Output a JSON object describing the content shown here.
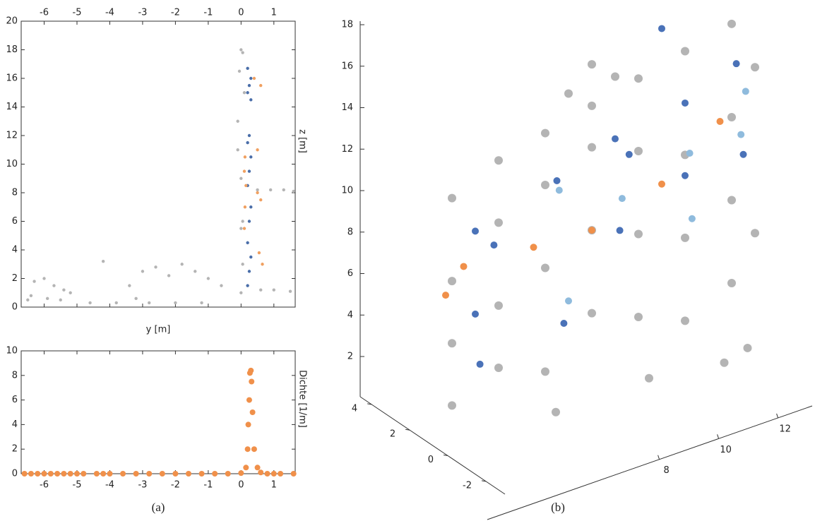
{
  "chart_data": [
    {
      "type": "scatter",
      "xlabel": "y [m]",
      "ylabel": "z [m]",
      "caption": "(a)",
      "xlim": [
        -6.7,
        1.65
      ],
      "ylim": [
        0,
        20
      ],
      "xticks": [
        -6,
        -5,
        -4,
        -3,
        -2,
        -1,
        0,
        1
      ],
      "yticks": [
        0,
        2,
        4,
        6,
        8,
        10,
        12,
        14,
        16,
        18,
        20
      ],
      "series": [
        {
          "color": "#b4b4b4",
          "x": [
            -6.5,
            -6.3,
            -6.0,
            -5.7,
            -5.4,
            -5.2,
            -6.4,
            -5.9,
            -5.5,
            -4.6,
            -4.2,
            -3.8,
            -3.4,
            -3.0,
            -2.6,
            -2.2,
            -1.8,
            -1.4,
            -1.0,
            -0.6,
            -2.8,
            -2.0,
            -1.2,
            -3.2,
            0.0,
            0.05,
            0.0,
            0.05,
            0.0,
            -0.1,
            -0.1,
            0.1,
            0.5,
            0.9,
            1.3,
            1.6,
            0.6,
            1.0,
            1.5,
            -0.05,
            0.05,
            0.0
          ],
          "values": [
            0.5,
            1.8,
            2.0,
            1.5,
            1.2,
            1.0,
            0.8,
            0.6,
            0.5,
            0.3,
            3.2,
            0.3,
            1.5,
            2.5,
            2.8,
            2.2,
            3.0,
            2.5,
            2.0,
            1.5,
            0.3,
            0.3,
            0.3,
            0.6,
            1.0,
            3.0,
            5.5,
            6.0,
            9.0,
            11.0,
            13.0,
            15.0,
            8.2,
            8.2,
            8.2,
            8.1,
            1.2,
            1.2,
            1.1,
            16.5,
            17.8,
            18.0
          ]
        },
        {
          "color": "#4a6ea9",
          "x": [
            0.2,
            0.25,
            0.3,
            0.2,
            0.25,
            0.3,
            0.2,
            0.25,
            0.3,
            0.2,
            0.25,
            0.3,
            0.2,
            0.25,
            0.3,
            0.2
          ],
          "values": [
            1.5,
            2.5,
            3.5,
            4.5,
            6.0,
            7.0,
            8.5,
            9.5,
            10.5,
            11.5,
            12.0,
            14.5,
            15.0,
            15.5,
            16.0,
            16.7
          ]
        },
        {
          "color": "#f0a060",
          "x": [
            0.1,
            0.12,
            0.15,
            0.1,
            0.12,
            0.5,
            0.6,
            0.55,
            0.65,
            0.5,
            0.6,
            0.4
          ],
          "values": [
            5.5,
            7.0,
            8.5,
            9.5,
            10.5,
            8.0,
            7.5,
            3.8,
            3.0,
            11.0,
            15.5,
            16.0
          ]
        }
      ]
    },
    {
      "type": "scatter",
      "ylabel": "Dichte [1/m]",
      "xlim": [
        -6.7,
        1.65
      ],
      "ylim": [
        0,
        10
      ],
      "xticks": [
        -6,
        -5,
        -4,
        -3,
        -2,
        -1,
        0,
        1
      ],
      "yticks": [
        0,
        2,
        4,
        6,
        8,
        10
      ],
      "series": [
        {
          "color": "#f0904a",
          "x": [
            -6.6,
            -6.4,
            -6.2,
            -6.0,
            -5.8,
            -5.6,
            -5.4,
            -5.2,
            -5.0,
            -4.8,
            -4.4,
            -4.2,
            -4.0,
            -3.6,
            -3.2,
            -2.8,
            -2.4,
            -2.0,
            -1.6,
            -1.2,
            -0.8,
            -0.4,
            0.0,
            0.15,
            0.2,
            0.22,
            0.25,
            0.27,
            0.3,
            0.32,
            0.35,
            0.4,
            0.5,
            0.6,
            0.8,
            1.0,
            1.2,
            1.6
          ],
          "values": [
            0,
            0,
            0,
            0,
            0,
            0,
            0,
            0,
            0,
            0,
            0,
            0,
            0,
            0,
            0,
            0,
            0,
            0,
            0,
            0,
            0,
            0,
            0.05,
            0.5,
            2.0,
            4.0,
            6.0,
            8.2,
            8.4,
            7.5,
            5.0,
            2.0,
            0.5,
            0.1,
            0,
            0,
            0,
            0
          ]
        }
      ]
    },
    {
      "type": "scatter3d",
      "caption": "(b)",
      "zticks": [
        2,
        4,
        6,
        8,
        10,
        12,
        14,
        16,
        18
      ],
      "yticks": [
        -2,
        0,
        2,
        4
      ],
      "xticks": [
        8,
        10,
        12
      ],
      "series": [
        {
          "color": "#b4b4b4",
          "x": [
            0,
            0,
            0,
            0,
            2,
            2,
            2,
            2,
            4,
            4,
            4,
            4,
            6,
            6,
            6,
            6,
            8,
            8,
            8,
            8,
            10,
            10,
            10,
            10,
            12,
            12,
            12,
            12,
            13,
            13,
            5,
            6,
            7,
            4,
            8,
            11,
            12
          ],
          "y": [
            0,
            0,
            0,
            0,
            0,
            0,
            0,
            0,
            0,
            0,
            0,
            0,
            0,
            0,
            0,
            0,
            0,
            0,
            0,
            0,
            0,
            0,
            0,
            0,
            0,
            0,
            0,
            0,
            0,
            0,
            0,
            0,
            0,
            -2,
            -2,
            -3,
            -3
          ],
          "z": [
            1,
            4,
            7,
            11,
            2,
            5,
            9,
            12,
            1,
            6,
            10,
            12.5,
            3,
            7,
            11,
            13,
            2,
            6,
            10,
            13.5,
            1,
            5,
            9,
            14,
            2,
            6,
            10,
            14.5,
            4,
            12,
            14,
            15,
            14,
            0,
            0,
            0,
            0.3
          ]
        },
        {
          "color": "#4a72b8",
          "x": [
            1,
            1.8,
            4.5,
            7,
            7.6,
            10,
            12.2,
            1,
            7.2,
            10,
            12.5,
            1.2,
            4.8,
            9
          ],
          "y": [
            0,
            0,
            0,
            0,
            0,
            0,
            0,
            0,
            0,
            0,
            0,
            0,
            0,
            0
          ],
          "z": [
            9,
            8,
            10,
            11,
            10,
            11.5,
            12.5,
            5,
            6.5,
            8,
            8,
            2.5,
            3,
            15.5
          ]
        },
        {
          "color": "#8fbbdd",
          "x": [
            4.6,
            7.3,
            10.2,
            12.4,
            12.6,
            10.3,
            5
          ],
          "y": [
            0,
            0,
            0,
            0,
            0,
            0,
            0
          ],
          "z": [
            9.5,
            8,
            9,
            9,
            11,
            5.8,
            4
          ]
        },
        {
          "color": "#f0904a",
          "x": [
            0.5,
            3.5,
            6,
            9,
            11.5,
            -0.5
          ],
          "y": [
            0,
            0,
            0,
            0,
            0,
            -1
          ],
          "z": [
            7.5,
            7.2,
            7,
            8,
            10,
            7
          ]
        }
      ]
    }
  ]
}
